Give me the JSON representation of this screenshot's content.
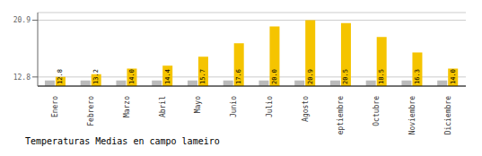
{
  "chart_data": {
    "type": "bar",
    "title": "Temperaturas Medias en campo lameiro",
    "categories": [
      "Enero",
      "Febrero",
      "Marzo",
      "Abril",
      "Mayo",
      "Junio",
      "Julio",
      "Agosto",
      "Septiembre",
      "Octubre",
      "Noviembre",
      "Diciembre"
    ],
    "series": [
      {
        "color": "#BBBBBB",
        "values": [
          12.3,
          12.3,
          12.3,
          12.3,
          12.3,
          12.3,
          12.3,
          12.3,
          12.3,
          12.3,
          12.3,
          12.3
        ]
      },
      {
        "color": "#F5C400",
        "values": [
          12.8,
          13.2,
          14.0,
          14.4,
          15.7,
          17.6,
          20.0,
          20.9,
          20.5,
          18.5,
          16.3,
          14.0
        ],
        "value_labels": [
          "12.8",
          "13.2",
          "14.0",
          "14.4",
          "15.7",
          "17.6",
          "20.0",
          "20.9",
          "20.5",
          "18.5",
          "16.3",
          "14.0"
        ],
        "data_labels": true
      }
    ],
    "ylim": [
      11.5,
      22.0
    ],
    "yticks": [
      12.8,
      20.9
    ],
    "grid": true
  }
}
